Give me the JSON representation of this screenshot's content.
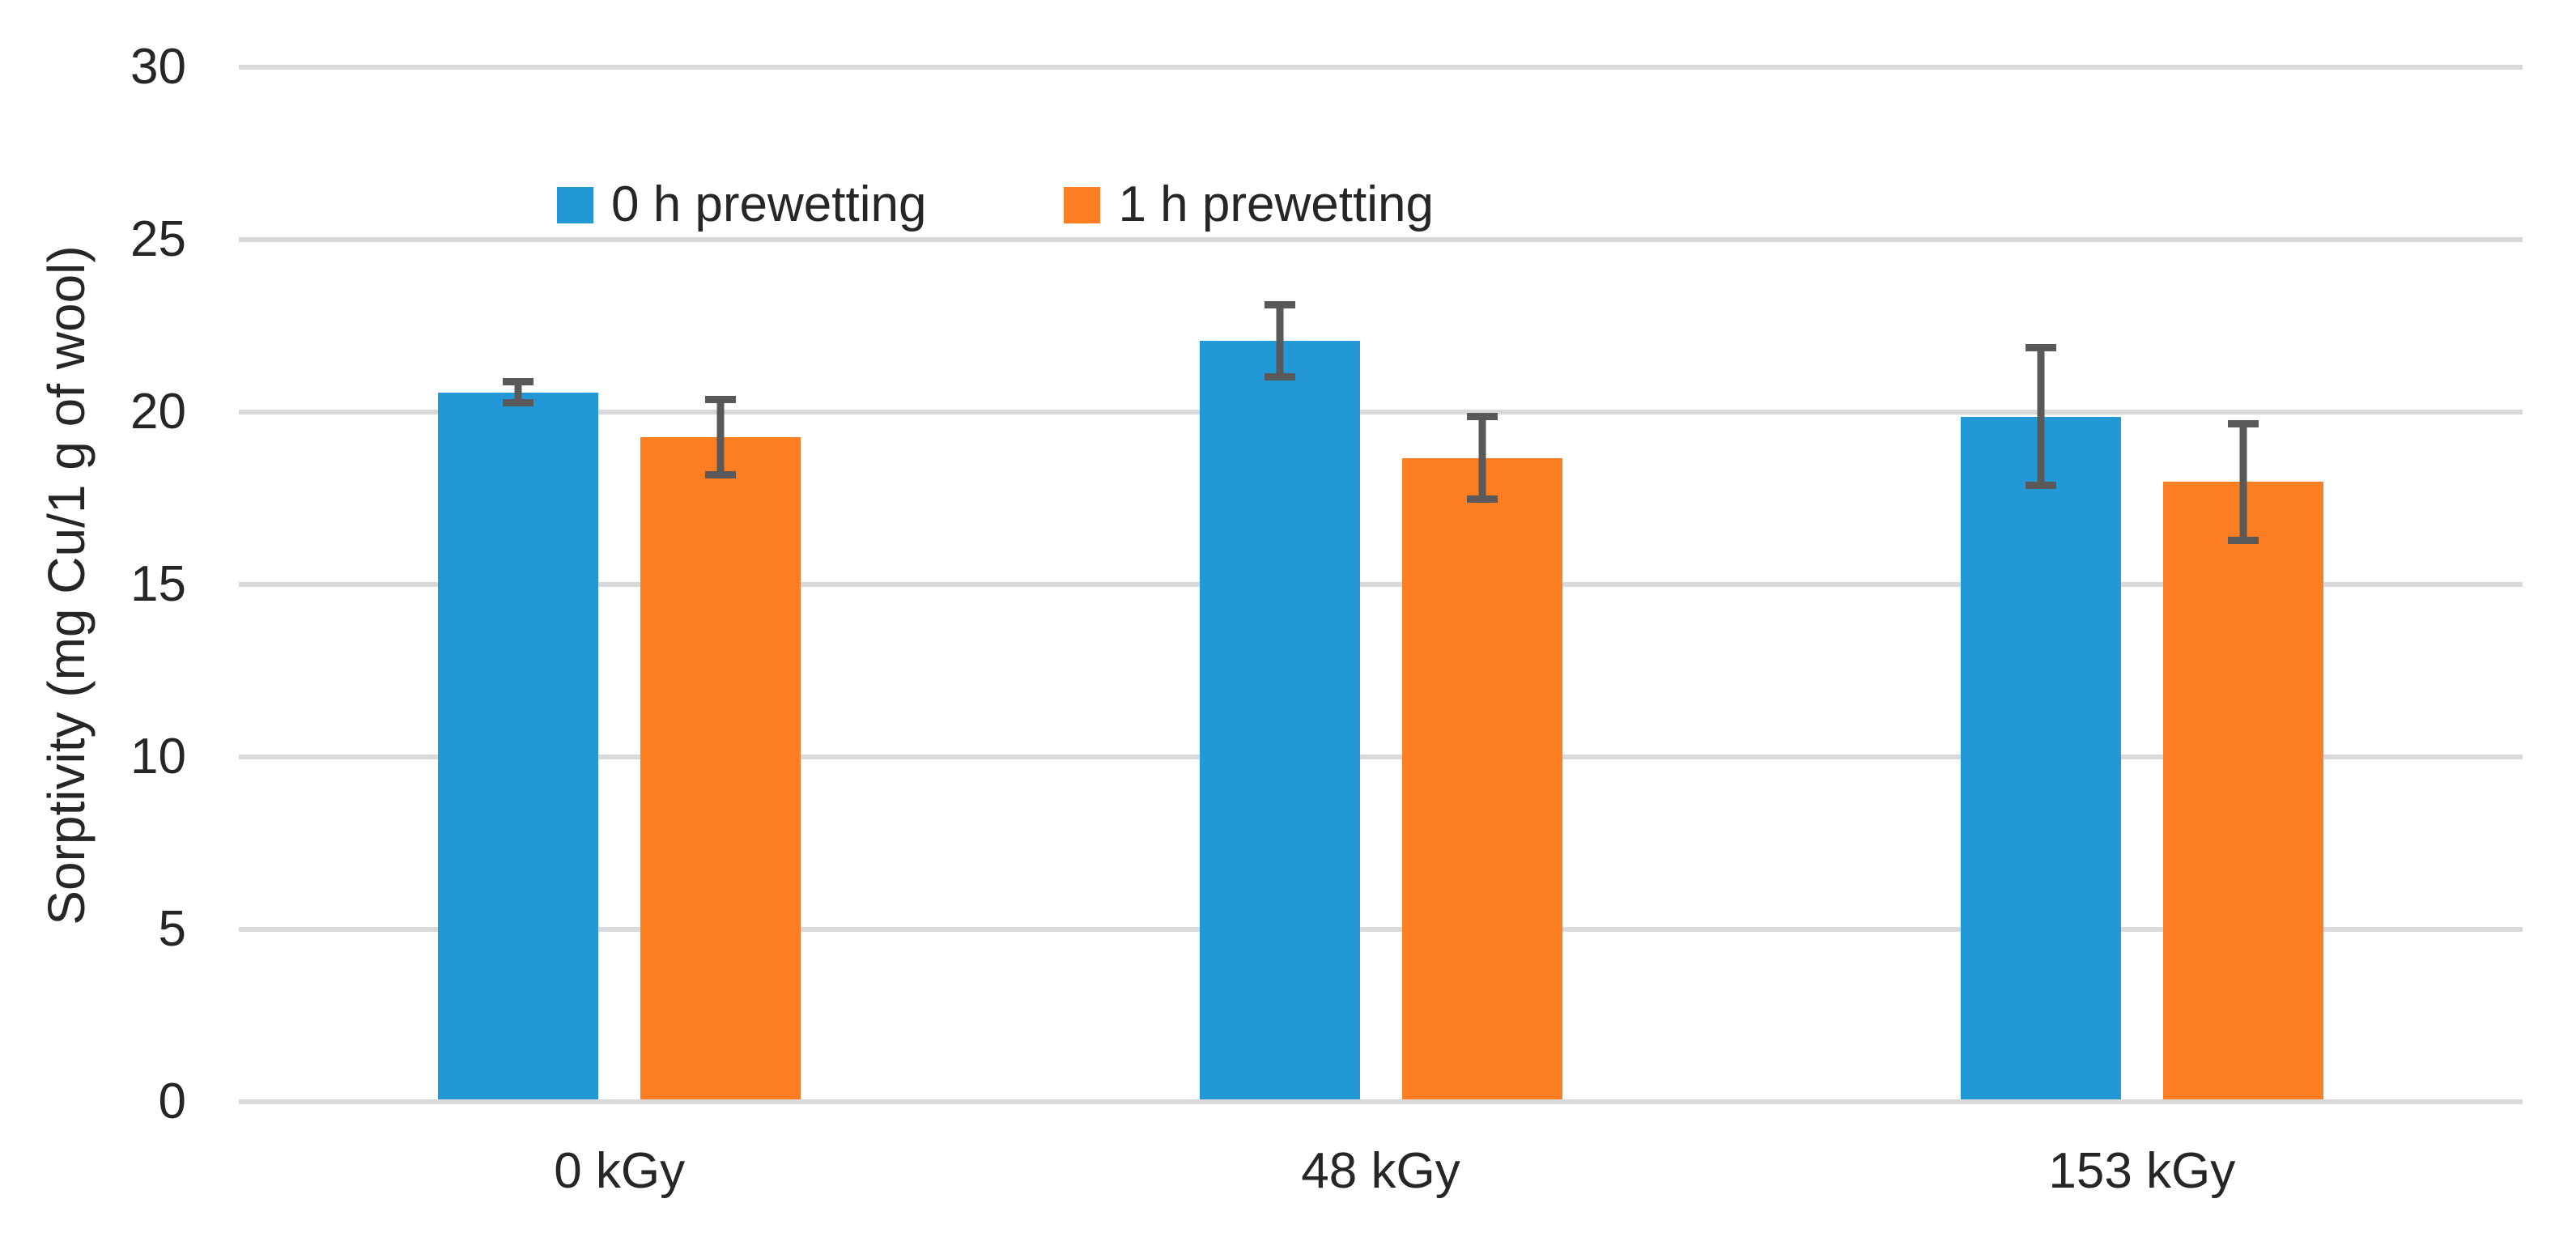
{
  "chart_data": {
    "type": "bar",
    "title": "",
    "ylabel": "Sorptivity (mg Cu/1 g of wool)",
    "xlabel": "",
    "ylim": [
      0,
      30
    ],
    "yticks": [
      0,
      5,
      10,
      15,
      20,
      25,
      30
    ],
    "grid": true,
    "legend_position": "inside-top-left",
    "categories": [
      "0 kGy",
      "48 kGy",
      "153 kGy"
    ],
    "series": [
      {
        "name": "0 h prewetting",
        "color": "#2299D6",
        "values": [
          20.5,
          22.0,
          19.8
        ],
        "error_bars": [
          0.3,
          1.05,
          2.0
        ]
      },
      {
        "name": "1 h prewetting",
        "color": "#FC7D22",
        "values": [
          19.2,
          18.6,
          17.9
        ],
        "error_bars": [
          1.1,
          1.2,
          1.7
        ]
      }
    ],
    "colors": {
      "error_bar": "#595959",
      "gridline": "#D9D9D9",
      "text": "#262626",
      "background": "#FFFFFF"
    }
  }
}
